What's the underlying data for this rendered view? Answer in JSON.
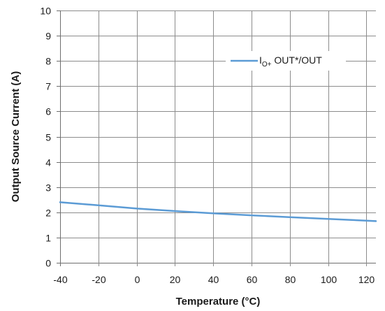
{
  "chart_data": {
    "type": "line",
    "title": "",
    "xlabel": "Temperature  (°C)",
    "ylabel": "Output Source Current (A)",
    "xlim": [
      -40,
      125
    ],
    "ylim": [
      0,
      10
    ],
    "x_ticks": [
      -40,
      -20,
      0,
      20,
      40,
      60,
      80,
      100,
      120
    ],
    "y_ticks": [
      0,
      1,
      2,
      3,
      4,
      5,
      6,
      7,
      8,
      9,
      10
    ],
    "grid": true,
    "legend_position": "top-right",
    "series": [
      {
        "name": "I_O+ OUT*/OUT",
        "legend_main": "I",
        "legend_sub": "O+",
        "legend_rest": " OUT*/OUT",
        "color": "#5b9bd5",
        "x": [
          -40,
          -20,
          0,
          20,
          40,
          60,
          80,
          100,
          125
        ],
        "y": [
          2.4,
          2.28,
          2.15,
          2.05,
          1.96,
          1.88,
          1.81,
          1.74,
          1.65
        ]
      }
    ]
  }
}
